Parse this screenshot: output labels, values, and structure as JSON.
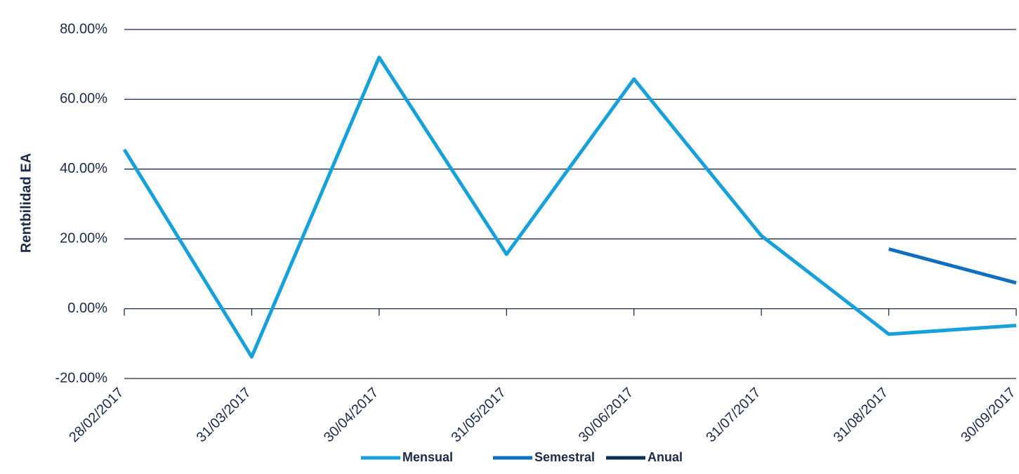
{
  "chart_data": {
    "type": "line",
    "title": "",
    "xlabel": "",
    "ylabel": "Rentbilidad EA",
    "categories": [
      "28/02/2017",
      "31/03/2017",
      "30/04/2017",
      "31/05/2017",
      "30/06/2017",
      "31/07/2017",
      "31/08/2017",
      "30/09/2017"
    ],
    "y_ticks": [
      "-20.00%",
      "0.00%",
      "20.00%",
      "40.00%",
      "60.00%",
      "80.00%"
    ],
    "y_tick_values": [
      -20,
      0,
      20,
      40,
      60,
      80
    ],
    "ylim": [
      -20,
      80
    ],
    "grid": true,
    "legend_position": "bottom",
    "series": [
      {
        "name": "Mensual",
        "color": "#17a0d9",
        "values": [
          45.6,
          -13.8,
          72.0,
          15.6,
          65.8,
          20.9,
          -7.3,
          -4.8
        ]
      },
      {
        "name": "Semestral",
        "color": "#0e6fc1",
        "values": [
          null,
          null,
          null,
          null,
          null,
          null,
          17.1,
          7.4
        ]
      },
      {
        "name": "Anual",
        "color": "#0b2f5b",
        "values": [
          null,
          null,
          null,
          null,
          null,
          null,
          null,
          null
        ]
      }
    ]
  }
}
